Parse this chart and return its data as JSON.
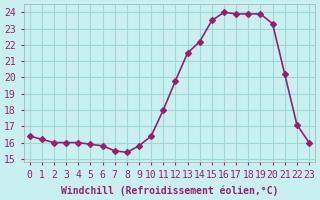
{
  "x": [
    0,
    1,
    2,
    3,
    4,
    5,
    6,
    7,
    8,
    9,
    10,
    11,
    12,
    13,
    14,
    15,
    16,
    17,
    18,
    19,
    20,
    21,
    22,
    23
  ],
  "y": [
    16.4,
    16.2,
    16.0,
    16.0,
    16.0,
    15.9,
    15.8,
    15.5,
    15.4,
    15.8,
    16.4,
    18.0,
    19.8,
    21.5,
    22.2,
    23.5,
    24.0,
    23.9,
    23.9,
    23.9,
    23.3,
    20.2,
    17.1,
    16.0
  ],
  "line_color": "#991f6e",
  "marker": "D",
  "markersize": 3,
  "linewidth": 1.2,
  "background_color": "#c8f0f0",
  "grid_color": "#a0d8d8",
  "xlabel": "Windchill (Refroidissement éolien,°C)",
  "ylabel_ticks": [
    15,
    16,
    17,
    18,
    19,
    20,
    21,
    22,
    23,
    24
  ],
  "xlim": [
    -0.5,
    23.5
  ],
  "ylim": [
    14.8,
    24.5
  ],
  "xlabel_fontsize": 7,
  "tick_fontsize": 7,
  "tick_color": "#991f6e",
  "spine_color": "#aaaaaa"
}
